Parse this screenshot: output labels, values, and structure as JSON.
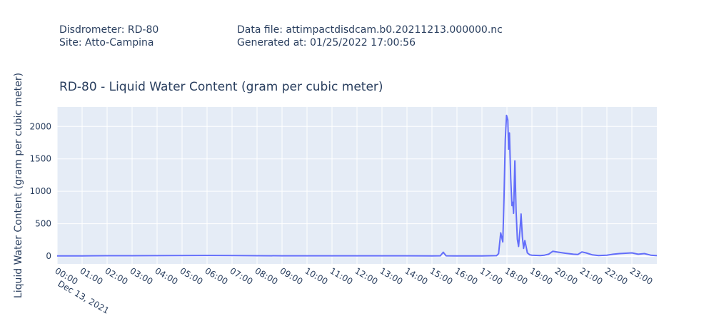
{
  "header": {
    "disdrometer": "Disdrometer: RD-80",
    "site": "Site: Atto-Campina",
    "data_file": "Data file: attimpactdisdcam.b0.20211213.000000.nc",
    "generated_at": "Generated at: 01/25/2022 17:00:56"
  },
  "chart_data": {
    "type": "line",
    "title": "RD-80 - Liquid Water Content (gram per cubic meter)",
    "xlabel": "",
    "ylabel": "Liquid Water Content (gram per cubic meter)",
    "date_label": "Dec 13, 2021",
    "x_tick_labels": [
      "00:00",
      "01:00",
      "02:00",
      "03:00",
      "04:00",
      "05:00",
      "06:00",
      "07:00",
      "08:00",
      "09:00",
      "10:00",
      "11:00",
      "12:00",
      "13:00",
      "14:00",
      "15:00",
      "16:00",
      "17:00",
      "18:00",
      "19:00",
      "20:00",
      "21:00",
      "22:00",
      "23:00"
    ],
    "y_ticks": [
      0,
      500,
      1000,
      1500,
      2000
    ],
    "xlim": [
      "00:00",
      "24:00"
    ],
    "ylim": [
      -120,
      2300
    ],
    "grid": true,
    "colors": {
      "line": "#636efa",
      "plot_bg": "#e5ecf6",
      "grid": "#ffffff",
      "text": "#2a3f5f"
    },
    "series": [
      {
        "x": [
          "00:00",
          "01:00",
          "02:00",
          "03:00",
          "04:00",
          "05:00",
          "06:00",
          "07:00",
          "08:00",
          "09:00",
          "10:00",
          "11:00",
          "12:00",
          "13:00",
          "14:00",
          "15:00",
          "15:20",
          "15:27",
          "15:34",
          "16:00",
          "17:00",
          "17:35",
          "17:40",
          "17:45",
          "17:50",
          "17:53",
          "17:56",
          "17:59",
          "18:02",
          "18:04",
          "18:06",
          "18:09",
          "18:12",
          "18:14",
          "18:16",
          "18:19",
          "18:22",
          "18:25",
          "18:28",
          "18:31",
          "18:34",
          "18:37",
          "18:40",
          "18:43",
          "18:46",
          "18:49",
          "18:55",
          "19:00",
          "19:20",
          "19:30",
          "19:40",
          "19:50",
          "20:00",
          "20:20",
          "20:40",
          "20:50",
          "21:00",
          "21:10",
          "21:25",
          "21:40",
          "22:00",
          "22:15",
          "22:30",
          "22:45",
          "23:00",
          "23:15",
          "23:30",
          "23:45",
          "24:00"
        ],
        "y": [
          3,
          4,
          6,
          7,
          8,
          10,
          11,
          10,
          7,
          5,
          5,
          5,
          5,
          5,
          5,
          3,
          5,
          60,
          5,
          3,
          3,
          8,
          40,
          360,
          220,
          900,
          1800,
          2170,
          2100,
          1650,
          1900,
          1200,
          780,
          830,
          660,
          1470,
          700,
          260,
          150,
          380,
          650,
          300,
          120,
          240,
          150,
          50,
          20,
          15,
          10,
          15,
          30,
          75,
          65,
          45,
          30,
          25,
          65,
          50,
          20,
          10,
          15,
          30,
          40,
          45,
          50,
          30,
          40,
          15,
          8
        ]
      }
    ]
  }
}
